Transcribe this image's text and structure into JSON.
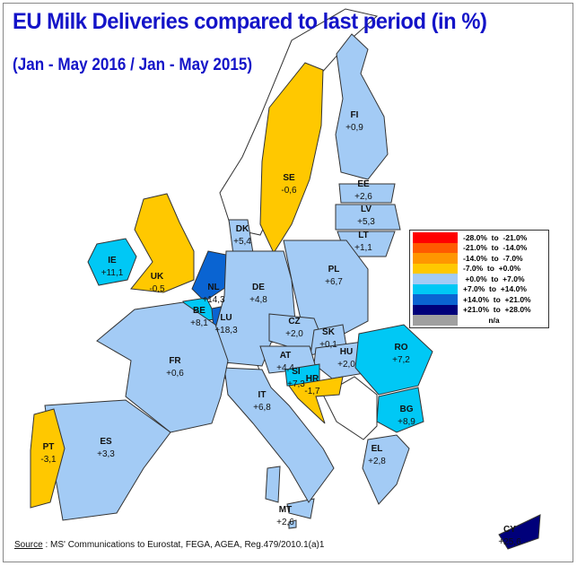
{
  "title": "EU Milk Deliveries compared to last period (in %)",
  "subtitle": "(Jan - May 2016 / Jan - May 2015)",
  "source": {
    "label": "Source",
    "text": " : MS' Communications to Eurostat, FEGA, AGEA, Reg.479/2010.1(a)1"
  },
  "legend": [
    {
      "range": "-28.0%  to  -21.0%",
      "color": "#ff0000"
    },
    {
      "range": "-21.0%  to  -14.0%",
      "color": "#ff5a00"
    },
    {
      "range": "-14.0%  to  -7.0%",
      "color": "#ff9600"
    },
    {
      "range": "-7.0%  to  +0.0%",
      "color": "#ffc800"
    },
    {
      "range": " +0.0%  to  +7.0%",
      "color": "#a3cbf5"
    },
    {
      "range": "+7.0%  to  +14.0%",
      "color": "#00c8f5"
    },
    {
      "range": "+14.0%  to  +21.0%",
      "color": "#0a64d2"
    },
    {
      "range": "+21.0%  to  +28.0%",
      "color": "#00007a"
    },
    {
      "range": "            n/a",
      "color": "#a0a0a0"
    }
  ],
  "countries": [
    {
      "code": "FI",
      "value": "+0,9",
      "color": "#a3cbf5"
    },
    {
      "code": "SE",
      "value": "-0,6",
      "color": "#ffc800"
    },
    {
      "code": "EE",
      "value": "+2,6",
      "color": "#a3cbf5"
    },
    {
      "code": "LV",
      "value": "+5,3",
      "color": "#a3cbf5"
    },
    {
      "code": "LT",
      "value": "+1,1",
      "color": "#a3cbf5"
    },
    {
      "code": "DK",
      "value": "+5,4",
      "color": "#a3cbf5"
    },
    {
      "code": "IE",
      "value": "+11,1",
      "color": "#00c8f5"
    },
    {
      "code": "UK",
      "value": "-0,5",
      "color": "#ffc800"
    },
    {
      "code": "NL",
      "value": "+14,3",
      "color": "#0a64d2"
    },
    {
      "code": "BE",
      "value": "+8,1",
      "color": "#00c8f5"
    },
    {
      "code": "LU",
      "value": "+18,3",
      "color": "#0a64d2"
    },
    {
      "code": "DE",
      "value": "+4,8",
      "color": "#a3cbf5"
    },
    {
      "code": "PL",
      "value": "+6,7",
      "color": "#a3cbf5"
    },
    {
      "code": "CZ",
      "value": "+2,0",
      "color": "#a3cbf5"
    },
    {
      "code": "SK",
      "value": "+0,1",
      "color": "#a3cbf5"
    },
    {
      "code": "HU",
      "value": "+2,0",
      "color": "#a3cbf5"
    },
    {
      "code": "AT",
      "value": "+4,4",
      "color": "#a3cbf5"
    },
    {
      "code": "SI",
      "value": "+7,3",
      "color": "#00c8f5"
    },
    {
      "code": "HR",
      "value": "-1,7",
      "color": "#ffc800"
    },
    {
      "code": "RO",
      "value": "+7,2",
      "color": "#00c8f5"
    },
    {
      "code": "BG",
      "value": "+8,9",
      "color": "#00c8f5"
    },
    {
      "code": "EL",
      "value": "+2,8",
      "color": "#a3cbf5"
    },
    {
      "code": "IT",
      "value": "+6,8",
      "color": "#a3cbf5"
    },
    {
      "code": "FR",
      "value": "+0,6",
      "color": "#a3cbf5"
    },
    {
      "code": "ES",
      "value": "+3,3",
      "color": "#a3cbf5"
    },
    {
      "code": "PT",
      "value": "-3,1",
      "color": "#ffc800"
    },
    {
      "code": "MT",
      "value": "+2,6",
      "color": "#a3cbf5"
    },
    {
      "code": "CY",
      "value": "+25,6",
      "color": "#00007a"
    }
  ]
}
